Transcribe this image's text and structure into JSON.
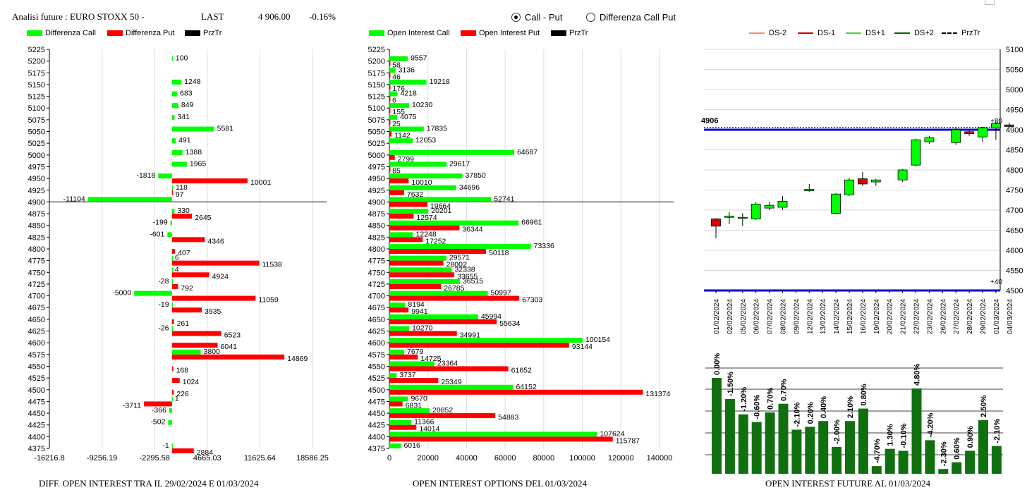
{
  "header": {
    "title": "Analisi future : EURO STOXX 50 -",
    "last_label": "LAST",
    "last_value": "4 906.00",
    "change": "-0.16%"
  },
  "radio": {
    "option1": "Call - Put",
    "option2": "Differenza Call Put",
    "selected": "Call - Put"
  },
  "legend1": {
    "call": "Differenza Call",
    "put": "Differenza Put",
    "prz": "PrzTr"
  },
  "legend2": {
    "call": "Open Interest Call",
    "put": "Open Interest Put",
    "prz": "PrzTr"
  },
  "legend3": {
    "ds_minus2": "DS-2",
    "ds_minus1": "DS-1",
    "ds_plus1": "DS+1",
    "ds_plus2": "DS+2",
    "prz": "PrzTr"
  },
  "footers": {
    "left": "DIFF. OPEN INTEREST TRA IL 29/02/2024 E 01/03/2024",
    "middle": "OPEN INTEREST OPTIONS DEL 01/03/2024",
    "right": "OPEN INTEREST FUTURE AL 01/03/2024"
  },
  "colors": {
    "call": "#00ff00",
    "put": "#ff0000",
    "dark_green": "#107010",
    "blue": "#0000cc",
    "ds_minus2": "#ff8c69",
    "ds_minus1": "#cc0000",
    "ds_plus1": "#33dd33",
    "ds_plus2": "#006400"
  },
  "chart_data": [
    {
      "type": "bar",
      "orientation": "horizontal",
      "title": "DIFF. OPEN INTEREST TRA IL 29/02/2024 E 01/03/2024",
      "categories": [
        "5225",
        "5200",
        "5175",
        "5150",
        "5125",
        "5100",
        "5075",
        "5050",
        "5025",
        "5000",
        "4975",
        "4950",
        "4925",
        "4900",
        "4875",
        "4850",
        "4825",
        "4800",
        "4775",
        "4750",
        "4725",
        "4700",
        "4675",
        "4650",
        "4625",
        "4600",
        "4575",
        "4550",
        "4525",
        "4500",
        "4475",
        "4450",
        "4425",
        "4400",
        "4375"
      ],
      "series": [
        {
          "name": "Differenza Call",
          "values": [
            null,
            100,
            null,
            1248,
            683,
            849,
            341,
            5581,
            491,
            1388,
            1965,
            -1818,
            118,
            -11104,
            330,
            -199,
            -601,
            null,
            6,
            4,
            -28,
            -5000,
            -19,
            null,
            -26,
            null,
            3800,
            null,
            null,
            null,
            1,
            -366,
            -502,
            null,
            -1
          ]
        },
        {
          "name": "Differenza Put",
          "values": [
            null,
            null,
            null,
            null,
            null,
            null,
            null,
            null,
            null,
            null,
            null,
            10001,
            97,
            null,
            2645,
            null,
            4346,
            407,
            11538,
            4924,
            792,
            11059,
            3935,
            261,
            6523,
            6041,
            14869,
            168,
            1024,
            226,
            -3711,
            null,
            null,
            null,
            2884
          ]
        }
      ],
      "price_line": 4900,
      "xticks": [
        "-16216.8",
        "-9256.19",
        "-2295.58",
        "4665.03",
        "11625.64",
        "18586.25"
      ],
      "xlim": [
        -16216.8,
        18586.25
      ]
    },
    {
      "type": "bar",
      "orientation": "horizontal",
      "title": "OPEN INTEREST OPTIONS DEL 01/03/2024",
      "categories": [
        "5225",
        "5200",
        "5175",
        "5150",
        "5125",
        "5100",
        "5075",
        "5050",
        "5025",
        "5000",
        "4975",
        "4950",
        "4925",
        "4900",
        "4875",
        "4850",
        "4825",
        "4800",
        "4775",
        "4750",
        "4725",
        "4700",
        "4675",
        "4650",
        "4625",
        "4600",
        "4575",
        "4550",
        "4525",
        "4500",
        "4475",
        "4450",
        "4425",
        "4400",
        "4375"
      ],
      "series": [
        {
          "name": "Open Interest Call",
          "values": [
            null,
            9557,
            3136,
            19218,
            4218,
            10230,
            4075,
            17835,
            12053,
            64687,
            29617,
            37850,
            34696,
            52741,
            20201,
            66961,
            12248,
            73336,
            29571,
            32338,
            36515,
            50997,
            8194,
            45994,
            10270,
            100154,
            7679,
            23364,
            3737,
            64152,
            9670,
            20852,
            11366,
            107624,
            6016
          ]
        },
        {
          "name": "Open Interest Put",
          "values": [
            null,
            58,
            46,
            176,
            6,
            155,
            25,
            1142,
            null,
            2799,
            85,
            10010,
            7632,
            19664,
            12574,
            36344,
            17252,
            50118,
            28002,
            33655,
            26785,
            67303,
            9941,
            55634,
            34991,
            93144,
            14725,
            61652,
            25349,
            131374,
            6831,
            54883,
            14014,
            115787,
            null
          ]
        }
      ],
      "price_line": 4900,
      "xticks": [
        "0",
        "20000",
        "40000",
        "60000",
        "80000",
        "100000",
        "120000",
        "140000"
      ],
      "xlim": [
        0,
        140000
      ]
    },
    {
      "type": "candlestick",
      "title": "OPEN INTEREST FUTURE AL 01/03/2024",
      "dates": [
        "01/02/2024",
        "02/02/2024",
        "05/02/2024",
        "06/02/2024",
        "07/02/2024",
        "08/02/2024",
        "09/02/2024",
        "12/02/2024",
        "13/02/2024",
        "14/02/2024",
        "15/02/2024",
        "16/02/2024",
        "19/02/2024",
        "20/02/2024",
        "21/02/2024",
        "22/02/2024",
        "23/02/2024",
        "26/02/2024",
        "27/02/2024",
        "28/02/2024",
        "29/02/2024",
        "01/03/2024",
        "04/03/2024"
      ],
      "candles": [
        {
          "o": 4678,
          "h": 4680,
          "l": 4630,
          "c": 4660
        },
        {
          "o": 4682,
          "h": 4695,
          "l": 4665,
          "c": 4685
        },
        {
          "o": 4682,
          "h": 4692,
          "l": 4660,
          "c": 4682
        },
        {
          "o": 4678,
          "h": 4720,
          "l": 4675,
          "c": 4715
        },
        {
          "o": 4705,
          "h": 4720,
          "l": 4700,
          "c": 4712
        },
        {
          "o": 4707,
          "h": 4735,
          "l": 4700,
          "c": 4722
        },
        {
          "o": null,
          "h": null,
          "l": null,
          "c": null
        },
        {
          "o": 4748,
          "h": 4765,
          "l": 4745,
          "c": 4752
        },
        {
          "o": null,
          "h": null,
          "l": null,
          "c": null
        },
        {
          "o": 4692,
          "h": 4742,
          "l": 4690,
          "c": 4740
        },
        {
          "o": 4738,
          "h": 4780,
          "l": 4735,
          "c": 4775
        },
        {
          "o": 4778,
          "h": 4795,
          "l": 4760,
          "c": 4765
        },
        {
          "o": 4770,
          "h": 4778,
          "l": 4760,
          "c": 4775
        },
        {
          "o": null,
          "h": null,
          "l": null,
          "c": null
        },
        {
          "o": 4775,
          "h": 4802,
          "l": 4770,
          "c": 4800
        },
        {
          "o": 4812,
          "h": 4878,
          "l": 4808,
          "c": 4875
        },
        {
          "o": 4870,
          "h": 4885,
          "l": 4865,
          "c": 4880
        },
        {
          "o": null,
          "h": null,
          "l": null,
          "c": null
        },
        {
          "o": 4868,
          "h": 4905,
          "l": 4862,
          "c": 4900
        },
        {
          "o": 4895,
          "h": 4900,
          "l": 4885,
          "c": 4890
        },
        {
          "o": 4882,
          "h": 4908,
          "l": 4870,
          "c": 4905
        },
        {
          "o": 4905,
          "h": 4920,
          "l": 4875,
          "c": 4915
        },
        {
          "o": 4912,
          "h": 4918,
          "l": 4905,
          "c": 4908
        }
      ],
      "price_label": "4906",
      "price": 4906,
      "ds_line_upper": 4900,
      "ds_line_lower": 4500,
      "annot_upper": "+80",
      "annot_lower": "+40",
      "yticks": [
        "5100",
        "5050",
        "5000",
        "4950",
        "4900",
        "4850",
        "4800",
        "4750",
        "4700",
        "4650",
        "4600",
        "4550",
        "4500"
      ],
      "ylim": [
        4500,
        5100
      ],
      "oi_bars": [
        {
          "label": "0.00%",
          "value": 1.0
        },
        {
          "label": "-1.50%",
          "value": 0.78
        },
        {
          "label": "-1.20%",
          "value": 0.62
        },
        {
          "label": "-0.60%",
          "value": 0.54
        },
        {
          "label": "0.70%",
          "value": 0.64
        },
        {
          "label": "0.70%",
          "value": 0.73
        },
        {
          "label": "-2.10%",
          "value": 0.46
        },
        {
          "label": "0.20%",
          "value": 0.49
        },
        {
          "label": "0.40%",
          "value": 0.55
        },
        {
          "label": "-2.00%",
          "value": 0.28
        },
        {
          "label": "2.10%",
          "value": 0.55
        },
        {
          "label": "0.80%",
          "value": 0.68
        },
        {
          "label": "-4.70%",
          "value": 0.08
        },
        {
          "label": "1.30%",
          "value": 0.26
        },
        {
          "label": "-0.10%",
          "value": 0.24
        },
        {
          "label": "4.80%",
          "value": 0.89
        },
        {
          "label": "-4.20%",
          "value": 0.35
        },
        {
          "label": "-2.30%",
          "value": 0.05
        },
        {
          "label": "0.60%",
          "value": 0.12
        },
        {
          "label": "0.90%",
          "value": 0.24
        },
        {
          "label": "2.50%",
          "value": 0.56
        },
        {
          "label": "-2.10%",
          "value": 0.29
        }
      ]
    }
  ]
}
